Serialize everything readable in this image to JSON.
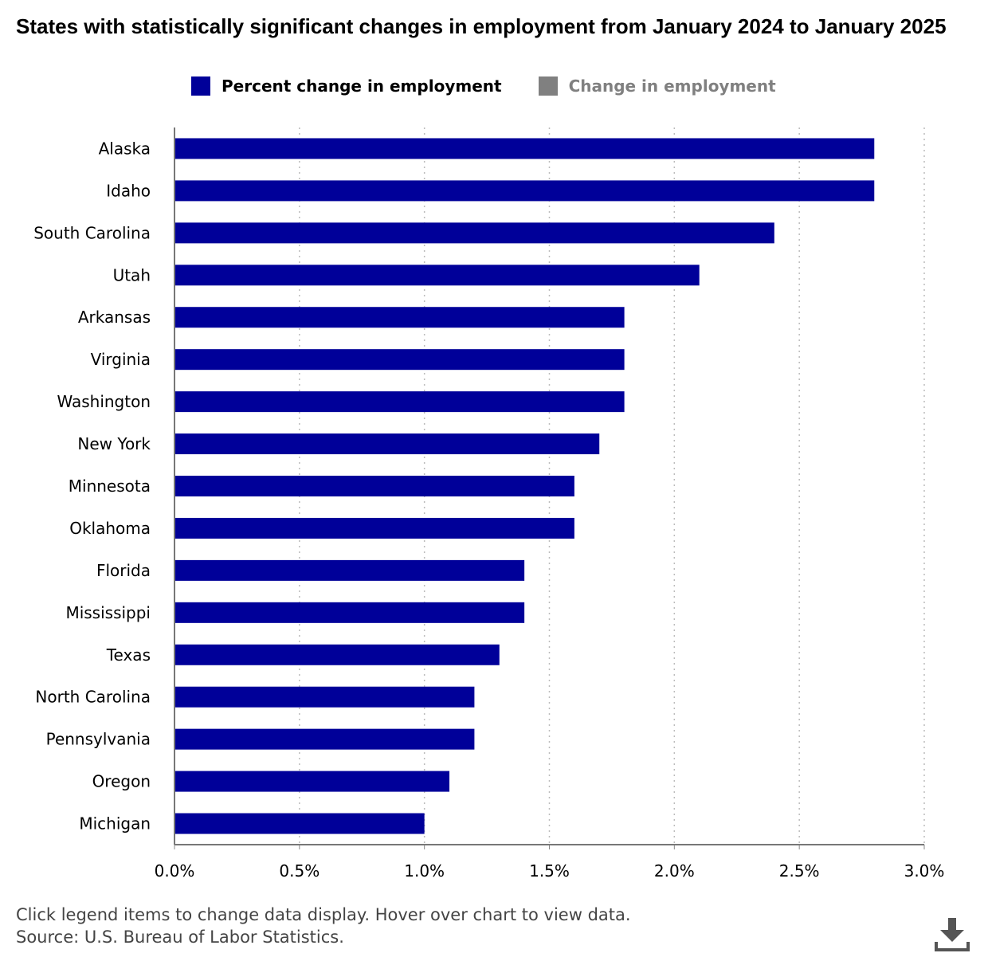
{
  "chart_title": "States with statistically significant changes in employment from January 2024 to January 2025",
  "legend": [
    {
      "label": "Percent change in employment",
      "color": "#000099",
      "active": true
    },
    {
      "label": "Change in employment",
      "color": "#808080",
      "active": false
    }
  ],
  "footer": {
    "note": "Click legend items to change data display. Hover over chart to view data.",
    "source": "Source: U.S. Bureau of Labor Statistics."
  },
  "download_icon": "download-icon",
  "chart_data": {
    "type": "bar",
    "orientation": "horizontal",
    "title": "States with statistically significant changes in employment from January 2024 to January 2025",
    "categories": [
      "Alaska",
      "Idaho",
      "South Carolina",
      "Utah",
      "Arkansas",
      "Virginia",
      "Washington",
      "New York",
      "Minnesota",
      "Oklahoma",
      "Florida",
      "Mississippi",
      "Texas",
      "North Carolina",
      "Pennsylvania",
      "Oregon",
      "Michigan"
    ],
    "series": [
      {
        "name": "Percent change in employment",
        "color": "#000099",
        "values": [
          2.8,
          2.8,
          2.4,
          2.1,
          1.8,
          1.8,
          1.8,
          1.7,
          1.6,
          1.6,
          1.4,
          1.4,
          1.3,
          1.2,
          1.2,
          1.1,
          1.0
        ]
      }
    ],
    "xlim": [
      0,
      3
    ],
    "x_ticks": [
      "0.0%",
      "0.5%",
      "1.0%",
      "1.5%",
      "2.0%",
      "2.5%",
      "3.0%"
    ],
    "grid": "vertical dotted"
  }
}
